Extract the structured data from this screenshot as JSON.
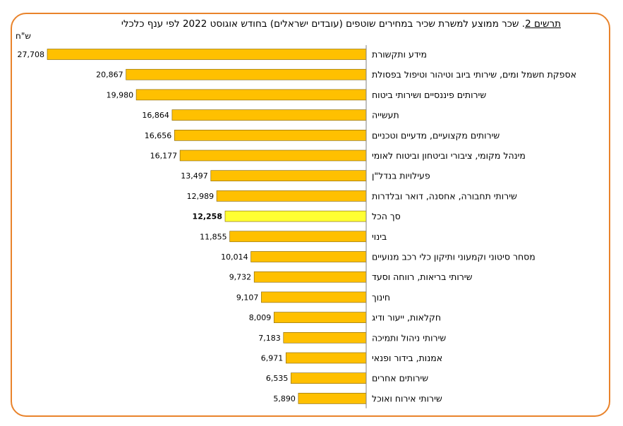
{
  "title": {
    "label": "תרשים 2",
    "text": ". שכר ממוצע למשרת שכיר במחירים שוטפים (עובדים ישראלים) בחודש אוגוסט 2022 לפי ענף כלכלי"
  },
  "colors": {
    "frame": "#E9832B",
    "bar": "#FFC000",
    "highlight": "#FFFF33",
    "bar_stroke": "#7F6000"
  },
  "chart_data": {
    "type": "bar",
    "orientation": "horizontal",
    "unit_label": "ש\"ח",
    "categories": [
      "מידע ותקשורת",
      "אספקת חשמל ומים, שירותי ביוב וטיהור וטיפול בפסולת",
      "שירותים פיננסיים ושירותי ביטוח",
      "תעשייה",
      "שירותים מקצועיים, מדעיים וטכניים",
      "מינהל מקומי, ציבורי וביטחון וביטוח לאומי",
      "פעילויות בנדל\"ן",
      "שירותי תחבורה, אחסנה, דואר ובלדרות",
      "סך הכל",
      "בינוי",
      "מסחר סיטוני וקמעוני ותיקון כלי רכב מנועיים",
      "שירותי בריאות, רווחה וסעד",
      "חינוך",
      "חקלאות, ייעור ודיג",
      "שירותי ניהול ותמיכה",
      "אמנות, בידור ופנאי",
      "שירותים אחרים",
      "שירותי אירוח ואוכל"
    ],
    "values": [
      27708,
      20867,
      19980,
      16864,
      16656,
      16177,
      13497,
      12989,
      12258,
      11855,
      10014,
      9732,
      9107,
      8009,
      7183,
      6971,
      6535,
      5890
    ],
    "value_labels": [
      "27,708",
      "20,867",
      "19,980",
      "16,864",
      "16,656",
      "16,177",
      "13,497",
      "12,989",
      "12,258",
      "11,855",
      "10,014",
      "9,732",
      "9,107",
      "8,009",
      "7,183",
      "6,971",
      "6,535",
      "5,890"
    ],
    "highlight_category": "סך הכל",
    "xlim": [
      0,
      28000
    ],
    "grid": false,
    "legend": "none"
  }
}
